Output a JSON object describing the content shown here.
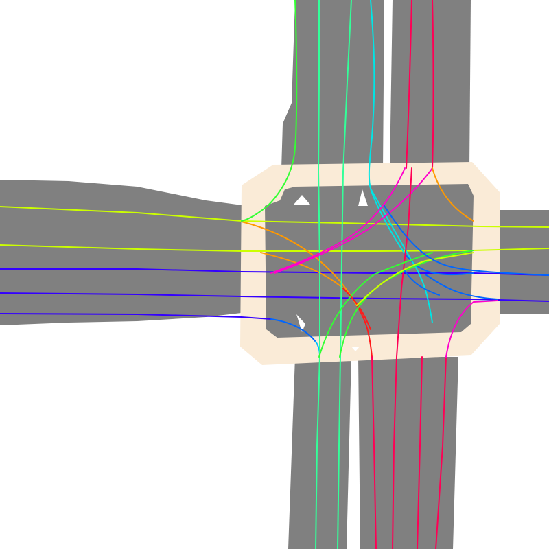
{
  "colors": {
    "background": "#ffffff",
    "road": "#808080",
    "crosswalk": "#faebd7",
    "trajectory_palette": {
      "yellow_green": "#ccff00",
      "green": "#33ff33",
      "spring_green": "#33ff99",
      "cyan": "#00e5e5",
      "sky_blue": "#00bfff",
      "blue": "#0066ff",
      "indigo": "#3300ff",
      "magenta": "#ff00cc",
      "crimson": "#ff0055",
      "red": "#ff1a1a",
      "orange": "#ff9900"
    }
  },
  "scene": {
    "type": "road intersection map with lane-centerline trajectories",
    "text_labels": []
  }
}
